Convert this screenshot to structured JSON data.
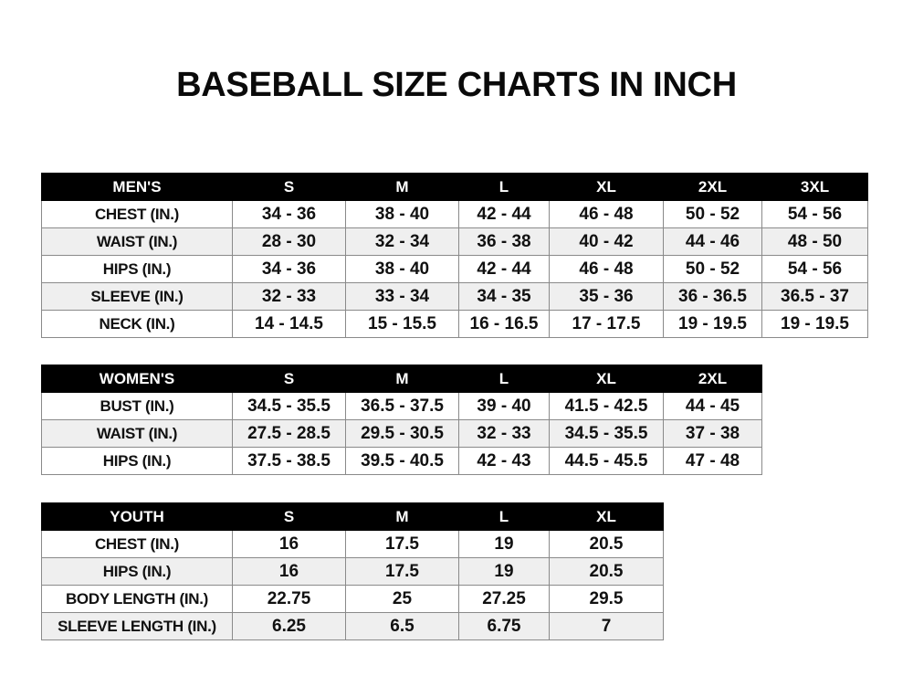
{
  "title": "BASEBALL SIZE CHARTS IN INCH",
  "colors": {
    "header_bg": "#000000",
    "header_text": "#ffffff",
    "alt_row": "#efefef",
    "border": "#8a8a8a"
  },
  "tables": [
    {
      "id": "men",
      "header": [
        "MEN'S",
        "S",
        "M",
        "L",
        "XL",
        "2XL",
        "3XL"
      ],
      "rows": [
        [
          "CHEST (IN.)",
          "34 - 36",
          "38 - 40",
          "42 - 44",
          "46 - 48",
          "50 - 52",
          "54 - 56"
        ],
        [
          "WAIST (IN.)",
          "28 - 30",
          "32 - 34",
          "36 - 38",
          "40 - 42",
          "44 - 46",
          "48 - 50"
        ],
        [
          "HIPS (IN.)",
          "34 - 36",
          "38 - 40",
          "42 - 44",
          "46 - 48",
          "50 - 52",
          "54 - 56"
        ],
        [
          "SLEEVE (IN.)",
          "32 - 33",
          "33 - 34",
          "34 - 35",
          "35 - 36",
          "36 - 36.5",
          "36.5 - 37"
        ],
        [
          "NECK (IN.)",
          "14 - 14.5",
          "15 - 15.5",
          "16 - 16.5",
          "17 - 17.5",
          "19 - 19.5",
          "19 - 19.5"
        ]
      ]
    },
    {
      "id": "women",
      "header": [
        "WOMEN'S",
        "S",
        "M",
        "L",
        "XL",
        "2XL"
      ],
      "rows": [
        [
          "BUST (IN.)",
          "34.5 - 35.5",
          "36.5 - 37.5",
          "39 - 40",
          "41.5 - 42.5",
          "44 - 45"
        ],
        [
          "WAIST (IN.)",
          "27.5 - 28.5",
          "29.5 - 30.5",
          "32 - 33",
          "34.5 - 35.5",
          "37 - 38"
        ],
        [
          "HIPS (IN.)",
          "37.5 - 38.5",
          "39.5 - 40.5",
          "42 - 43",
          "44.5 - 45.5",
          "47 - 48"
        ]
      ]
    },
    {
      "id": "youth",
      "header": [
        "YOUTH",
        "S",
        "M",
        "L",
        "XL"
      ],
      "rows": [
        [
          "CHEST (IN.)",
          "16",
          "17.5",
          "19",
          "20.5"
        ],
        [
          "HIPS (IN.)",
          "16",
          "17.5",
          "19",
          "20.5"
        ],
        [
          "BODY LENGTH (IN.)",
          "22.75",
          "25",
          "27.25",
          "29.5"
        ],
        [
          "SLEEVE LENGTH (IN.)",
          "6.25",
          "6.5",
          "6.75",
          "7"
        ]
      ]
    }
  ]
}
